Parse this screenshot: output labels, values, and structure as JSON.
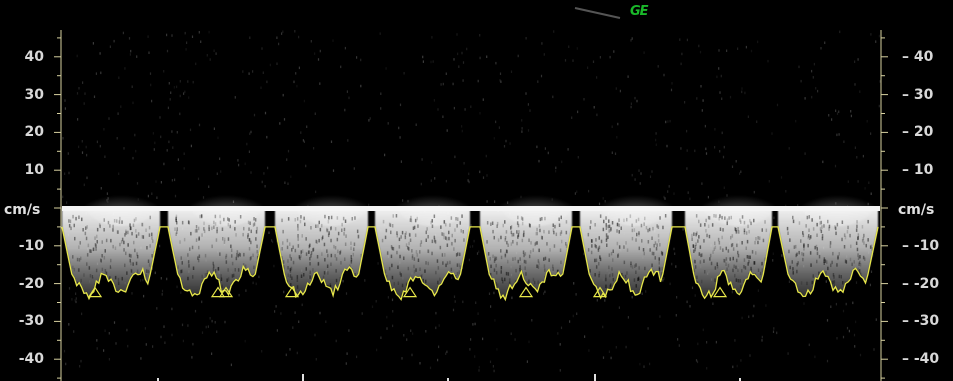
{
  "vendor_logo": "GE",
  "unit": "cm/s",
  "ticks": [
    {
      "value": 40,
      "label": "40"
    },
    {
      "value": 30,
      "label": "30"
    },
    {
      "value": 20,
      "label": "20"
    },
    {
      "value": 10,
      "label": "10"
    },
    {
      "value": -10,
      "label": "-10"
    },
    {
      "value": -20,
      "label": "-20"
    },
    {
      "value": -30,
      "label": "-30"
    },
    {
      "value": -40,
      "label": "-40"
    }
  ],
  "colors": {
    "background": "#000000",
    "trace": "#e8e84a",
    "axis": "#d8d2a0",
    "logo": "#1ab82a"
  },
  "velocity_range": [
    -45,
    45
  ],
  "beat_count": 8,
  "peak_velocity_cm_s": -20
}
